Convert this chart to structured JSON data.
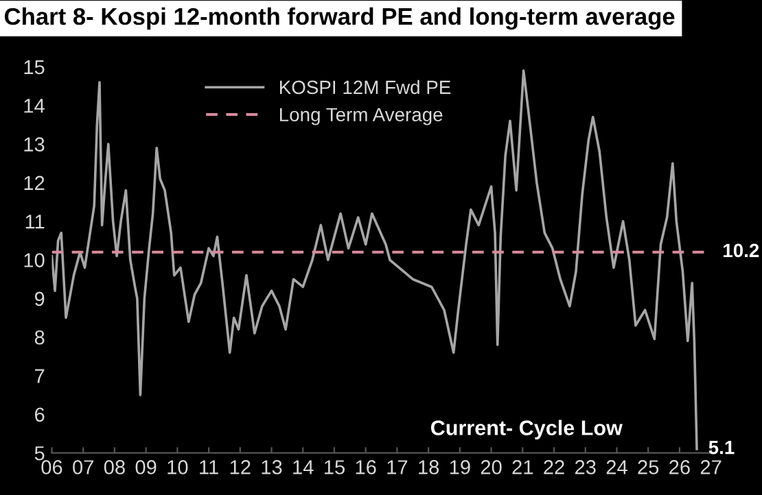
{
  "chart_data": {
    "type": "line",
    "title": "Chart 8- Kospi 12-month forward PE and long-term average",
    "series": [
      {
        "name": "KOSPI 12M Fwd PE",
        "color": "#a6a6a6",
        "x": [
          2006.0,
          2006.1,
          2006.2,
          2006.3,
          2006.45,
          2006.7,
          2006.9,
          2007.05,
          2007.2,
          2007.35,
          2007.44,
          2007.52,
          2007.6,
          2007.7,
          2007.8,
          2007.95,
          2008.07,
          2008.2,
          2008.36,
          2008.5,
          2008.65,
          2008.72,
          2008.82,
          2008.95,
          2009.1,
          2009.22,
          2009.34,
          2009.45,
          2009.6,
          2009.8,
          2009.9,
          2010.1,
          2010.36,
          2010.55,
          2010.75,
          2011.0,
          2011.15,
          2011.27,
          2011.45,
          2011.67,
          2011.8,
          2011.95,
          2012.2,
          2012.46,
          2012.7,
          2013.0,
          2013.25,
          2013.45,
          2013.7,
          2014.0,
          2014.3,
          2014.57,
          2014.8,
          2015.0,
          2015.2,
          2015.45,
          2015.76,
          2016.0,
          2016.2,
          2016.64,
          2016.77,
          2017.5,
          2018.1,
          2018.5,
          2018.8,
          2018.95,
          2019.2,
          2019.35,
          2019.6,
          2020.0,
          2020.12,
          2020.2,
          2020.3,
          2020.45,
          2020.6,
          2020.8,
          2021.03,
          2021.25,
          2021.45,
          2021.7,
          2021.95,
          2022.2,
          2022.5,
          2022.7,
          2022.9,
          2023.1,
          2023.24,
          2023.45,
          2023.67,
          2023.9,
          2024.2,
          2024.4,
          2024.6,
          2024.9,
          2025.2,
          2025.4,
          2025.6,
          2025.78,
          2025.9,
          2026.1,
          2026.26,
          2026.4,
          2026.47,
          2026.55
        ],
        "values": [
          10.1,
          9.2,
          10.5,
          10.7,
          8.5,
          9.6,
          10.2,
          9.8,
          10.6,
          11.4,
          13.5,
          14.6,
          10.9,
          12.0,
          13.0,
          11.0,
          10.1,
          11.0,
          11.8,
          10.0,
          9.3,
          9.0,
          6.5,
          9.0,
          10.3,
          11.2,
          12.9,
          12.1,
          11.8,
          10.7,
          9.6,
          9.8,
          8.4,
          9.1,
          9.4,
          10.3,
          10.1,
          10.6,
          9.3,
          7.6,
          8.5,
          8.2,
          9.6,
          8.1,
          8.8,
          9.2,
          8.8,
          8.2,
          9.5,
          9.3,
          10.0,
          10.9,
          10.0,
          10.6,
          11.2,
          10.3,
          11.1,
          10.4,
          11.2,
          10.4,
          10.0,
          9.5,
          9.3,
          8.7,
          7.6,
          8.7,
          10.4,
          11.3,
          10.9,
          11.9,
          10.7,
          7.8,
          10.6,
          12.7,
          13.6,
          11.8,
          14.9,
          13.4,
          12.0,
          10.7,
          10.3,
          9.5,
          8.8,
          9.7,
          11.7,
          13.1,
          13.7,
          12.8,
          11.1,
          9.8,
          11.0,
          10.0,
          8.3,
          8.7,
          7.95,
          10.4,
          11.1,
          12.5,
          11.0,
          9.7,
          7.9,
          9.4,
          7.9,
          5.1
        ]
      }
    ],
    "xlim": [
      2006,
      2027
    ],
    "xticks": [
      {
        "value": 2006,
        "label": "06"
      },
      {
        "value": 2007,
        "label": "07"
      },
      {
        "value": 2008,
        "label": "08"
      },
      {
        "value": 2009,
        "label": "09"
      },
      {
        "value": 2010,
        "label": "10"
      },
      {
        "value": 2011,
        "label": "11"
      },
      {
        "value": 2012,
        "label": "12"
      },
      {
        "value": 2013,
        "label": "13"
      },
      {
        "value": 2014,
        "label": "14"
      },
      {
        "value": 2015,
        "label": "15"
      },
      {
        "value": 2016,
        "label": "16"
      },
      {
        "value": 2017,
        "label": "17"
      },
      {
        "value": 2018,
        "label": "18"
      },
      {
        "value": 2019,
        "label": "19"
      },
      {
        "value": 2020,
        "label": "20"
      },
      {
        "value": 2021,
        "label": "21"
      },
      {
        "value": 2022,
        "label": "22"
      },
      {
        "value": 2023,
        "label": "23"
      },
      {
        "value": 2024,
        "label": "24"
      },
      {
        "value": 2025,
        "label": "25"
      },
      {
        "value": 2026,
        "label": "26"
      },
      {
        "value": 2027,
        "label": "27"
      }
    ],
    "ylim": [
      5,
      15
    ],
    "yticks": [
      5,
      6,
      7,
      8,
      9,
      10,
      11,
      12,
      13,
      14,
      15
    ],
    "ref_lines": [
      {
        "axis": "y",
        "value": 10.2,
        "label": "Long Term Average",
        "color": "#d98b9b",
        "line_style": "dashed"
      }
    ],
    "annotations": [
      {
        "text": "10.2",
        "x": 2027,
        "y": 10.2
      },
      {
        "text": "5.1",
        "x": 2026.55,
        "y": 5.1
      },
      "Current- Cycle Low"
    ],
    "legend": "top",
    "grid": false
  }
}
